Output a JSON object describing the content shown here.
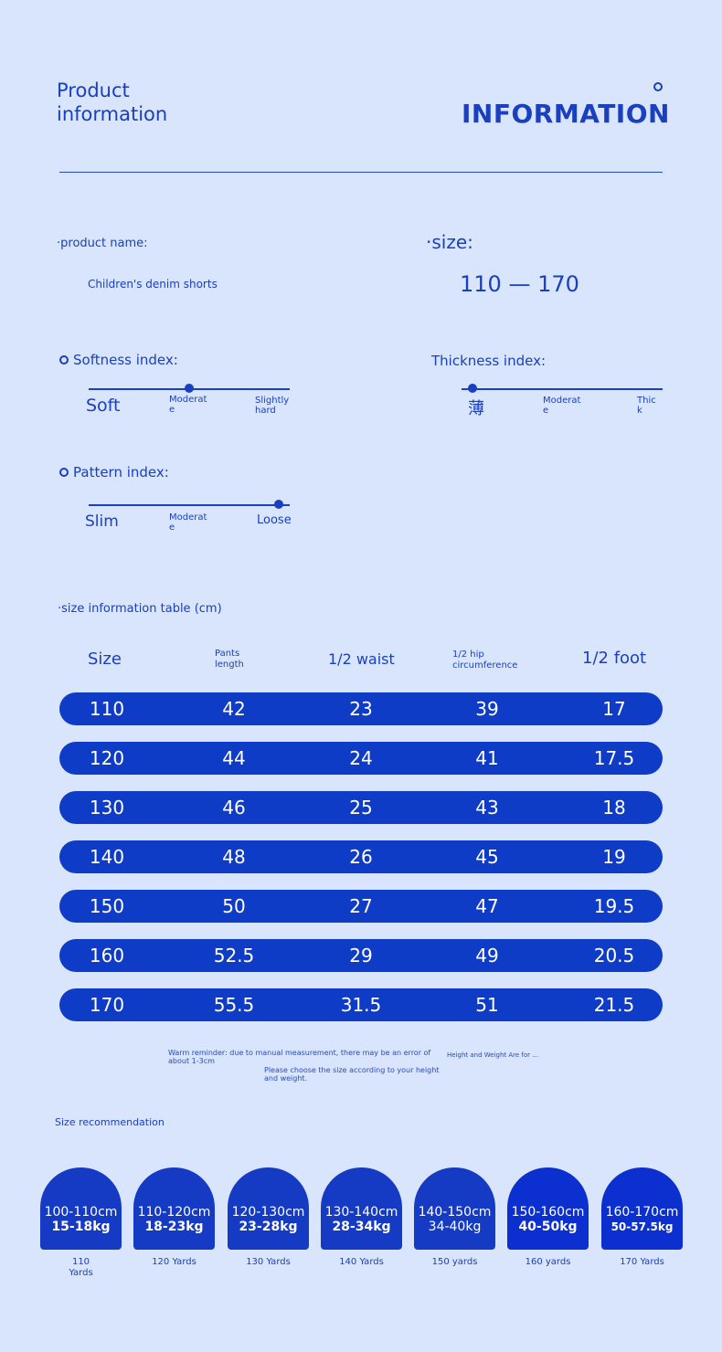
{
  "header": {
    "left_line1": "Product",
    "left_line2": "information",
    "right_title": "INFORMATION"
  },
  "product": {
    "name_label": "·product name:",
    "name_value": "Children's denim shorts",
    "size_label": "·size:",
    "size_value": "110 — 170"
  },
  "indices": {
    "softness": {
      "label": "Softness index:",
      "low": "Soft",
      "mid": [
        "Moderat",
        "e"
      ],
      "high": [
        "Slightly",
        "hard"
      ],
      "level": 0.5
    },
    "thickness": {
      "label": "Thickness index:",
      "low": "薄",
      "mid": [
        "Moderat",
        "e"
      ],
      "high": [
        "Thic",
        "k"
      ],
      "level": 0.0
    },
    "pattern": {
      "label": "Pattern index:",
      "low": "Slim",
      "mid": [
        "Moderat",
        "e"
      ],
      "high": "Loose",
      "level": 1.0
    }
  },
  "table": {
    "title": "·size information table (cm)",
    "headers": {
      "size": "Size",
      "pants_length": [
        "Pants",
        "length"
      ],
      "half_waist": "1/2 waist",
      "half_hip": [
        "1/2 hip",
        "circumference"
      ],
      "half_foot": "1/2 foot"
    },
    "rows": [
      [
        "110",
        "42",
        "23",
        "39",
        "17"
      ],
      [
        "120",
        "44",
        "24",
        "41",
        "17.5"
      ],
      [
        "130",
        "46",
        "25",
        "43",
        "18"
      ],
      [
        "140",
        "48",
        "26",
        "45",
        "19"
      ],
      [
        "150",
        "50",
        "27",
        "47",
        "19.5"
      ],
      [
        "160",
        "52.5",
        "29",
        "49",
        "20.5"
      ],
      [
        "170",
        "55.5",
        "31.5",
        "51",
        "21.5"
      ]
    ]
  },
  "notes": {
    "reminder": "Warm reminder: due to manual measurement, there may be an error of about 1-3cm",
    "height_weight": "Height and Weight Are for ...",
    "choose": "Please choose the size according to your height and weight."
  },
  "recommendation": {
    "title": "Size recommendation",
    "items": [
      {
        "height": "100-110cm",
        "weight": "15-18kg",
        "yards": "110\nYards"
      },
      {
        "height": "110-120cm",
        "weight": "18-23kg",
        "yards": "120 Yards"
      },
      {
        "height": "120-130cm",
        "weight": "23-28kg",
        "yards": "130 Yards"
      },
      {
        "height": "130-140cm",
        "weight": "28-34kg",
        "yards": "140 Yards"
      },
      {
        "height": "140-150cm",
        "weight": "34-40kg",
        "yards": "150 yards"
      },
      {
        "height": "150-160cm",
        "weight": "40-50kg",
        "yards": "160 yards"
      },
      {
        "height": "160-170cm",
        "weight": "50-57.5kg",
        "yards": "170 Yards"
      }
    ]
  }
}
